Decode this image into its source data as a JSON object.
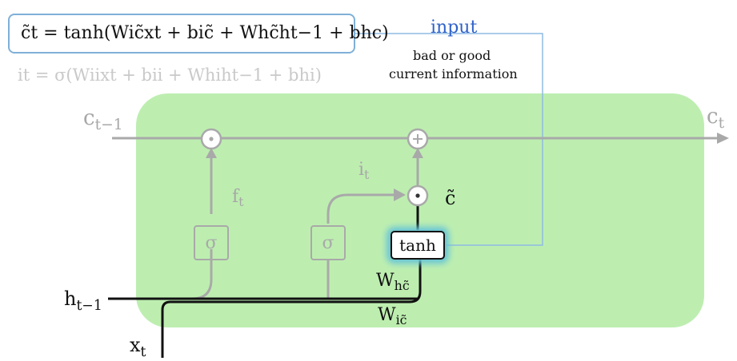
{
  "formulas": {
    "candidate": "c̃t = tanh(Wic̃xt + bic̃ + Whc̃ht−1 + bhc)",
    "input_gate": "it = σ(Wiixt + bii + Whiht−1 + bhi)"
  },
  "annotation": {
    "title": "input",
    "line1": "bad or good",
    "line2": "current information"
  },
  "labels": {
    "c_prev": "c",
    "c_prev_sub": "t−1",
    "c_next": "c",
    "c_next_sub": "t",
    "f": "f",
    "f_sub": "t",
    "i": "i",
    "i_sub": "t",
    "c_tilde": "c̃",
    "h_prev": "h",
    "h_prev_sub": "t−1",
    "x": "x",
    "x_sub": "t",
    "W_h": "W",
    "W_h_sub": "hc̃",
    "W_i": "W",
    "W_i_sub": "ic̃"
  },
  "ops": {
    "multiply": "·",
    "add": "+",
    "sigmoid": "σ",
    "tanh": "tanh"
  },
  "colors": {
    "cell_fill": "#bdeeb0",
    "gray_line": "#a9a9a9",
    "highlight": "#67c4d6",
    "input_blue": "#2f62c9",
    "connector_blue": "#8fbbe3"
  }
}
